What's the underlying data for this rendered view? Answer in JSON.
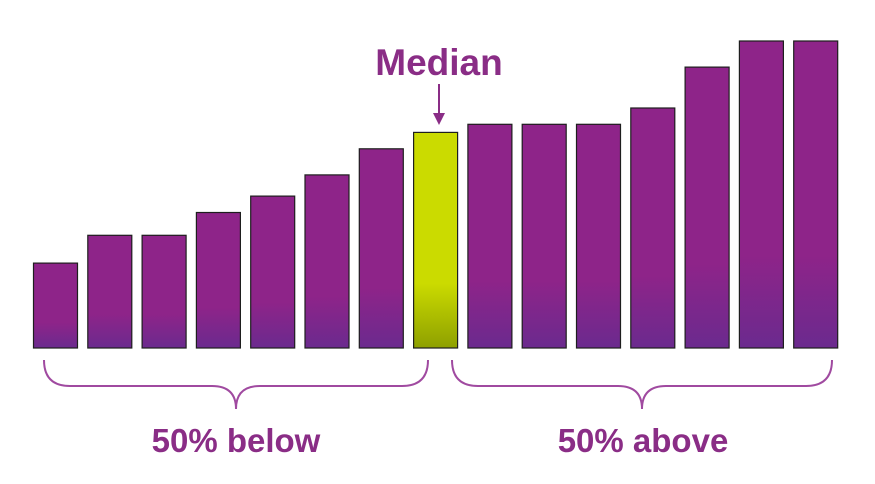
{
  "chart_data": {
    "type": "bar",
    "values": [
      5.2,
      6.9,
      6.9,
      8.3,
      9.3,
      10.6,
      12.2,
      13.2,
      13.7,
      13.7,
      13.7,
      14.7,
      17.2,
      18.8,
      18.8
    ],
    "median_index": 7,
    "ylim": [
      0,
      18.8
    ],
    "annotations": {
      "median": "Median",
      "below": "50% below",
      "above": "50% above"
    },
    "colors": {
      "bar_top": "#8e2489",
      "bar_bottom": "#6b2a8e",
      "median_top": "#cbdb00",
      "median_bottom": "#8ea000",
      "bar_stroke": "#1e1e1e",
      "text": "#8a2d86",
      "bracket": "#a04aa0",
      "arrow": "#8a2d86"
    }
  }
}
